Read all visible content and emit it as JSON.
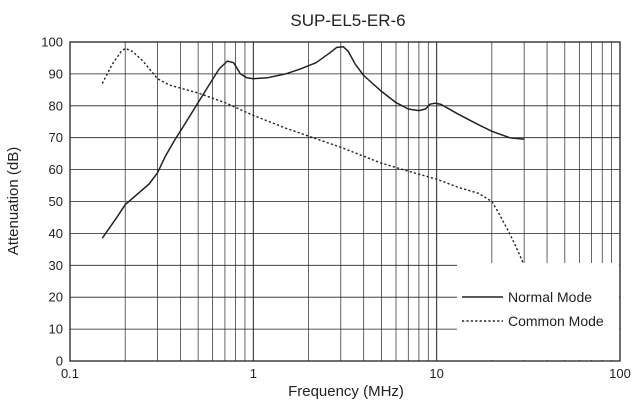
{
  "chart_data": {
    "type": "line",
    "title": "SUP-EL5-ER-6",
    "xlabel": "Frequency (MHz)",
    "ylabel": "Attenuation (dB)",
    "x_scale": "log",
    "xlim": [
      0.1,
      100
    ],
    "ylim": [
      0,
      100
    ],
    "x_ticks": [
      "0.1",
      "1",
      "10",
      "100"
    ],
    "y_ticks": [
      "0",
      "10",
      "20",
      "30",
      "40",
      "50",
      "60",
      "70",
      "80",
      "90",
      "100"
    ],
    "grid": true,
    "legend_position": "bottom-right",
    "series": [
      {
        "name": "Normal Mode",
        "style": "solid",
        "color": "#222222",
        "points": [
          [
            0.15,
            38.5
          ],
          [
            0.18,
            45
          ],
          [
            0.2,
            49
          ],
          [
            0.23,
            52
          ],
          [
            0.27,
            55.5
          ],
          [
            0.3,
            59
          ],
          [
            0.33,
            64
          ],
          [
            0.37,
            69
          ],
          [
            0.42,
            74
          ],
          [
            0.5,
            81
          ],
          [
            0.58,
            87
          ],
          [
            0.65,
            91.5
          ],
          [
            0.72,
            94
          ],
          [
            0.78,
            93.5
          ],
          [
            0.85,
            90
          ],
          [
            0.92,
            88.8
          ],
          [
            1.0,
            88.5
          ],
          [
            1.2,
            88.8
          ],
          [
            1.5,
            90
          ],
          [
            1.8,
            91.5
          ],
          [
            2.2,
            93.5
          ],
          [
            2.6,
            96.5
          ],
          [
            2.85,
            98.3
          ],
          [
            3.1,
            98.5
          ],
          [
            3.3,
            97
          ],
          [
            3.6,
            93
          ],
          [
            4.0,
            89.5
          ],
          [
            5.0,
            84.5
          ],
          [
            6.0,
            81
          ],
          [
            7.0,
            79
          ],
          [
            8.0,
            78.5
          ],
          [
            8.7,
            79
          ],
          [
            9.2,
            80.5
          ],
          [
            9.8,
            80.8
          ],
          [
            10.5,
            80.5
          ],
          [
            13,
            77.5
          ],
          [
            17,
            74
          ],
          [
            20,
            72
          ],
          [
            25,
            70
          ],
          [
            30,
            69.5
          ]
        ]
      },
      {
        "name": "Common Mode",
        "style": "dotted",
        "color": "#222222",
        "points": [
          [
            0.15,
            87
          ],
          [
            0.17,
            93
          ],
          [
            0.19,
            97
          ],
          [
            0.2,
            98
          ],
          [
            0.22,
            97
          ],
          [
            0.25,
            94
          ],
          [
            0.3,
            88.5
          ],
          [
            0.35,
            86.5
          ],
          [
            0.5,
            84
          ],
          [
            0.7,
            81
          ],
          [
            1.0,
            77
          ],
          [
            1.5,
            73
          ],
          [
            2.0,
            70.5
          ],
          [
            3.0,
            67
          ],
          [
            5.0,
            62
          ],
          [
            7.0,
            59.5
          ],
          [
            10,
            57
          ],
          [
            13,
            54.5
          ],
          [
            17,
            52.5
          ],
          [
            20,
            50
          ],
          [
            22,
            46
          ],
          [
            25,
            40
          ],
          [
            28,
            34
          ],
          [
            30,
            30
          ]
        ]
      }
    ]
  }
}
